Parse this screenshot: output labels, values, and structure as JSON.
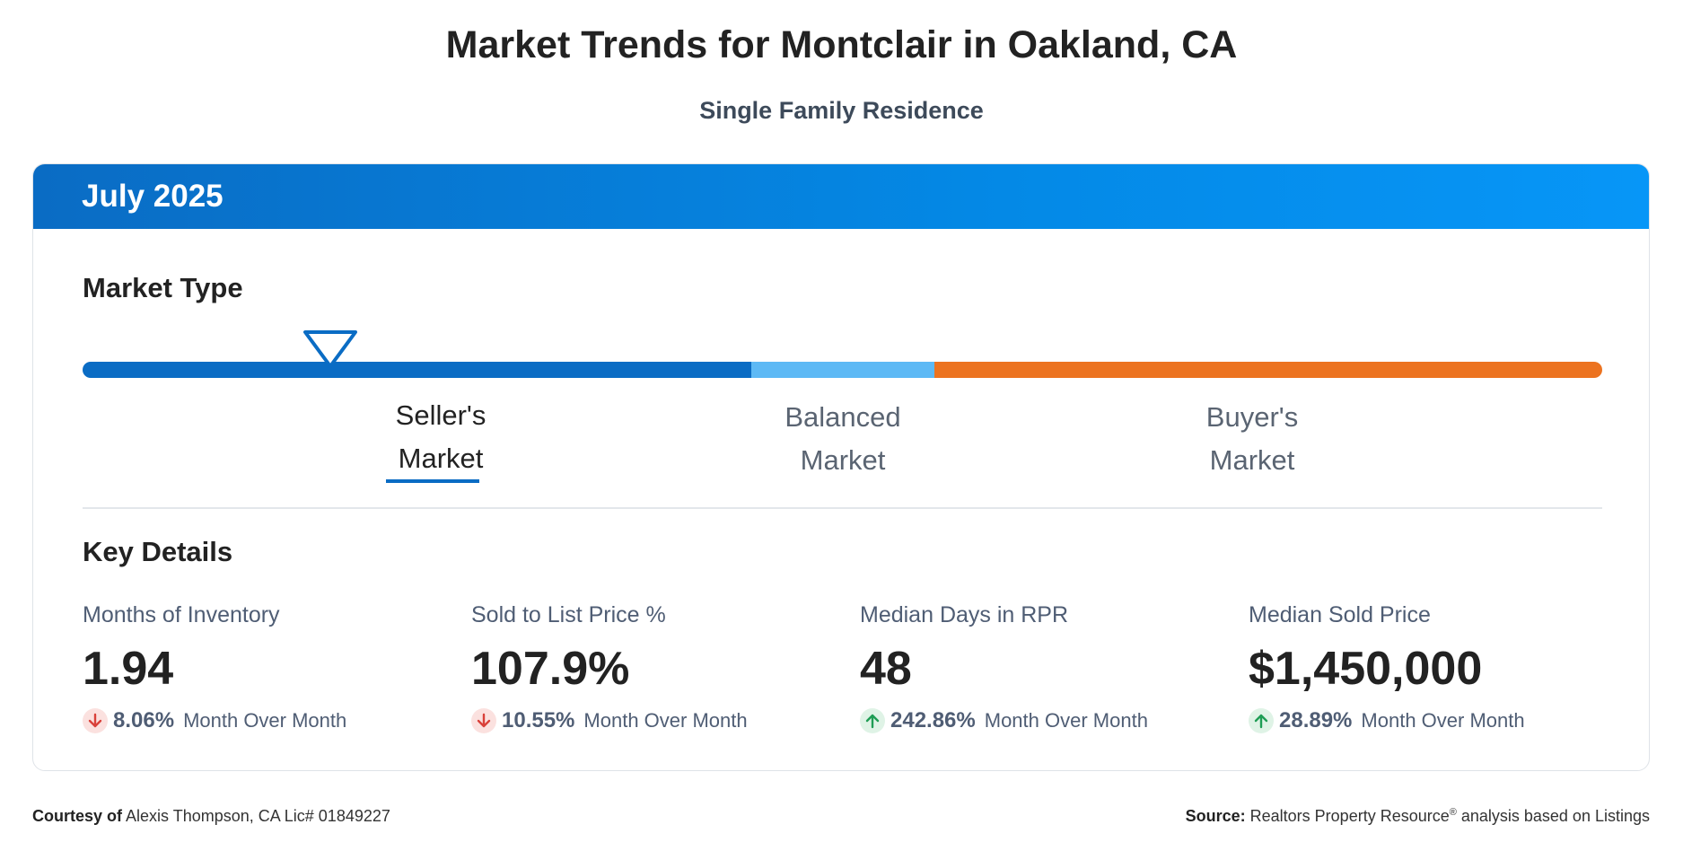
{
  "header": {
    "title": "Market Trends for Montclair in Oakland, CA",
    "subtitle": "Single Family Residence"
  },
  "card": {
    "period": "July 2025",
    "market_type": {
      "heading": "Market Type",
      "segments": [
        {
          "label_line1": "Seller's",
          "label_line2": "Market",
          "color": "#0a6cc4",
          "active": true
        },
        {
          "label_line1": "Balanced",
          "label_line2": "Market",
          "color": "#5db9f5",
          "active": false
        },
        {
          "label_line1": "Buyer's",
          "label_line2": "Market",
          "color": "#ec7320",
          "active": false
        }
      ],
      "indicator_position_fraction": 0.163
    },
    "key_details": {
      "heading": "Key Details",
      "items": [
        {
          "label": "Months of Inventory",
          "value": "1.94",
          "change": "8.06%",
          "direction": "down",
          "period_label": "Month Over Month"
        },
        {
          "label": "Sold to List Price %",
          "value": "107.9%",
          "change": "10.55%",
          "direction": "down",
          "period_label": "Month Over Month"
        },
        {
          "label": "Median Days in RPR",
          "value": "48",
          "change": "242.86%",
          "direction": "up",
          "period_label": "Month Over Month"
        },
        {
          "label": "Median Sold Price",
          "value": "$1,450,000",
          "change": "28.89%",
          "direction": "up",
          "period_label": "Month Over Month"
        }
      ]
    }
  },
  "footer": {
    "courtesy_prefix": "Courtesy of",
    "courtesy_text": "Alexis Thompson, CA Lic# 01849227",
    "source_prefix": "Source:",
    "source_text_a": "Realtors Property Resource",
    "source_sup": "®",
    "source_text_b": "analysis based on Listings"
  },
  "colors": {
    "header_blue": "#0489e6",
    "down_arrow": "#d9413a",
    "up_arrow": "#1f9d55"
  }
}
